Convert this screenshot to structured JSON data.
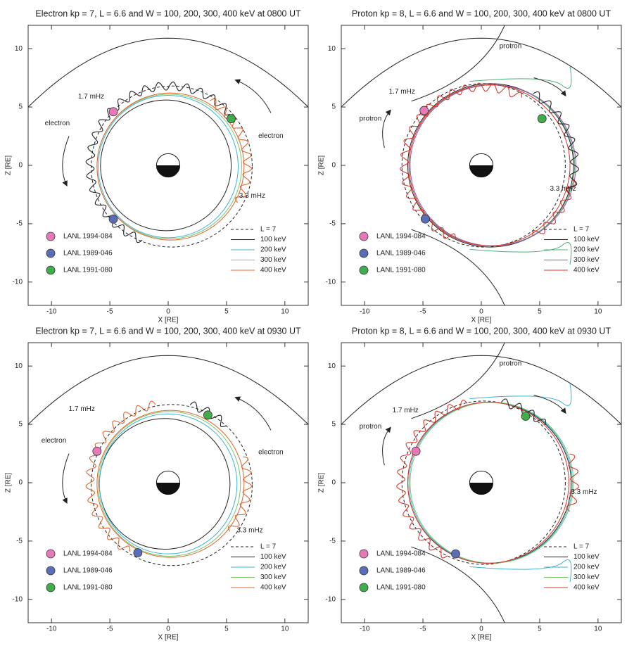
{
  "chart_data": [
    {
      "type": "scatter",
      "title": "Electron kp = 7, L = 6.6 and W = 100, 200, 300, 400 keV at 0800 UT",
      "xlabel": "X [RE]",
      "ylabel": "Z [RE]",
      "xlim": [
        -12,
        12
      ],
      "ylim": [
        -12,
        12
      ],
      "xticks": [
        -10,
        -5,
        0,
        5,
        10
      ],
      "yticks": [
        -10,
        -5,
        0,
        5,
        10
      ],
      "series": [
        {
          "name": "LANL 1994-084",
          "color": "#e879b8",
          "x": [
            -4.7
          ],
          "values": [
            4.6
          ]
        },
        {
          "name": "LANL 1989-046",
          "color": "#5a6eb8",
          "x": [
            -4.7
          ],
          "values": [
            -4.6
          ]
        },
        {
          "name": "LANL 1991-080",
          "color": "#3fae4a",
          "x": [
            5.4
          ],
          "values": [
            4.0
          ]
        }
      ],
      "lines": [
        {
          "name": "L = 7",
          "color": "#222222",
          "dash": true
        },
        {
          "name": "100 keV",
          "color": "#222222",
          "dash": false
        },
        {
          "name": "200 keV",
          "color": "#3cb4d8",
          "dash": false
        },
        {
          "name": "300 keV",
          "color": "#7cc66b",
          "dash": false
        },
        {
          "name": "400 keV",
          "color": "#e0642c",
          "dash": false
        }
      ],
      "annotations": [
        "1.7 mHz",
        "3.3 mHz",
        "electron",
        "electron"
      ]
    },
    {
      "type": "scatter",
      "title": "Proton kp = 8, L = 6.6 and W = 100, 200, 300, 400 keV at 0800 UT",
      "xlabel": "X [RE]",
      "ylabel": "Z [RE]",
      "xlim": [
        -12,
        12
      ],
      "ylim": [
        -12,
        12
      ],
      "xticks": [
        -10,
        -5,
        0,
        5,
        10
      ],
      "yticks": [
        -10,
        -5,
        0,
        5,
        10
      ],
      "series": [
        {
          "name": "LANL 1994-084",
          "color": "#e879b8",
          "x": [
            -4.9
          ],
          "values": [
            4.7
          ]
        },
        {
          "name": "LANL 1989-046",
          "color": "#5a6eb8",
          "x": [
            -4.8
          ],
          "values": [
            -4.6
          ]
        },
        {
          "name": "LANL 1991-080",
          "color": "#3fae4a",
          "x": [
            5.2
          ],
          "values": [
            4.0
          ]
        }
      ],
      "lines": [
        {
          "name": "L = 7",
          "color": "#222222",
          "dash": true
        },
        {
          "name": "100 keV",
          "color": "#222222",
          "dash": false
        },
        {
          "name": "200 keV",
          "color": "#4fb07a",
          "dash": false
        },
        {
          "name": "300 keV",
          "color": "#a050b0",
          "dash": false
        },
        {
          "name": "400 keV",
          "color": "#d8382c",
          "dash": false
        }
      ],
      "annotations": [
        "1.7 mHz",
        "3.3 mHz",
        "protron",
        "protron"
      ]
    },
    {
      "type": "scatter",
      "title": "Electron kp = 7, L = 6.6 and W = 100, 200, 300, 400 keV at 0930 UT",
      "xlabel": "X [RE]",
      "ylabel": "Z [RE]",
      "xlim": [
        -12,
        12
      ],
      "ylim": [
        -12,
        12
      ],
      "xticks": [
        -10,
        -5,
        0,
        5,
        10
      ],
      "yticks": [
        -10,
        -5,
        0,
        5,
        10
      ],
      "series": [
        {
          "name": "LANL 1994-084",
          "color": "#e879b8",
          "x": [
            -6.1
          ],
          "values": [
            2.7
          ]
        },
        {
          "name": "LANL 1989-046",
          "color": "#5a6eb8",
          "x": [
            -2.6
          ],
          "values": [
            -6.0
          ]
        },
        {
          "name": "LANL 1991-080",
          "color": "#3fae4a",
          "x": [
            3.4
          ],
          "values": [
            5.8
          ]
        }
      ],
      "lines": [
        {
          "name": "L = 7",
          "color": "#222222",
          "dash": true
        },
        {
          "name": "100 keV",
          "color": "#222222",
          "dash": false
        },
        {
          "name": "200 keV",
          "color": "#3cb4d8",
          "dash": false
        },
        {
          "name": "300 keV",
          "color": "#7cc66b",
          "dash": false
        },
        {
          "name": "400 keV",
          "color": "#e0642c",
          "dash": false
        }
      ],
      "annotations": [
        "1.7 mHz",
        "3.3 mHz",
        "electron",
        "electron"
      ]
    },
    {
      "type": "scatter",
      "title": "Proton kp = 8, L = 6.6 and W = 100, 200, 300, 400 keV at 0930 UT",
      "xlabel": "X [RE]",
      "ylabel": "Z [RE]",
      "xlim": [
        -12,
        12
      ],
      "ylim": [
        -12,
        12
      ],
      "xticks": [
        -10,
        -5,
        0,
        5,
        10
      ],
      "yticks": [
        -10,
        -5,
        0,
        5,
        10
      ],
      "series": [
        {
          "name": "LANL 1994-084",
          "color": "#e879b8",
          "x": [
            -5.6
          ],
          "values": [
            2.7
          ]
        },
        {
          "name": "LANL 1989-046",
          "color": "#5a6eb8",
          "x": [
            -2.2
          ],
          "values": [
            -6.1
          ]
        },
        {
          "name": "LANL 1991-080",
          "color": "#3fae4a",
          "x": [
            3.8
          ],
          "values": [
            5.7
          ]
        }
      ],
      "lines": [
        {
          "name": "L = 7",
          "color": "#222222",
          "dash": true
        },
        {
          "name": "100 keV",
          "color": "#222222",
          "dash": false
        },
        {
          "name": "200 keV",
          "color": "#3cb4d8",
          "dash": false
        },
        {
          "name": "300 keV",
          "color": "#7cc66b",
          "dash": false
        },
        {
          "name": "400 keV",
          "color": "#d8382c",
          "dash": false
        }
      ],
      "annotations": [
        "1.7 mHz",
        "3.3 mHz",
        "protron",
        "protron"
      ]
    }
  ]
}
